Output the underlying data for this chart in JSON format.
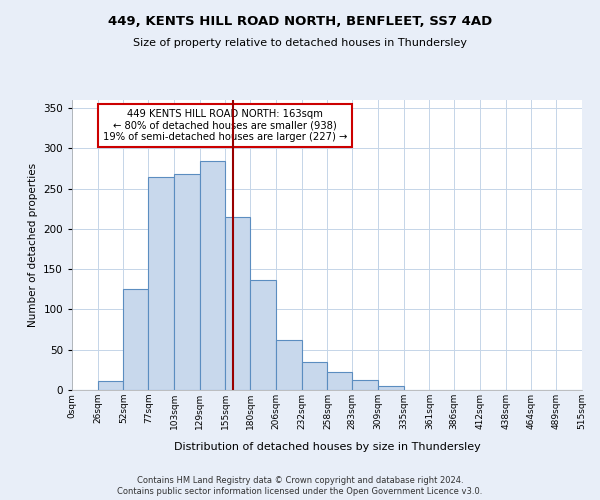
{
  "title": "449, KENTS HILL ROAD NORTH, BENFLEET, SS7 4AD",
  "subtitle": "Size of property relative to detached houses in Thundersley",
  "xlabel": "Distribution of detached houses by size in Thundersley",
  "ylabel": "Number of detached properties",
  "bar_labels": [
    "0sqm",
    "26sqm",
    "52sqm",
    "77sqm",
    "103sqm",
    "129sqm",
    "155sqm",
    "180sqm",
    "206sqm",
    "232sqm",
    "258sqm",
    "283sqm",
    "309sqm",
    "335sqm",
    "361sqm",
    "386sqm",
    "412sqm",
    "438sqm",
    "464sqm",
    "489sqm",
    "515sqm"
  ],
  "bin_edges": [
    0,
    26,
    52,
    77,
    103,
    129,
    155,
    180,
    206,
    232,
    258,
    283,
    309,
    335,
    361,
    386,
    412,
    438,
    464,
    489,
    515
  ],
  "bar_heights": [
    0,
    11,
    126,
    265,
    268,
    284,
    215,
    137,
    62,
    35,
    22,
    13,
    5,
    0,
    0,
    0,
    0,
    0,
    0,
    0
  ],
  "bar_color": "#c8d8ec",
  "bar_edge_color": "#5b8dc0",
  "reference_line_x": 163,
  "reference_line_color": "#990000",
  "ylim": [
    0,
    360
  ],
  "yticks": [
    0,
    50,
    100,
    150,
    200,
    250,
    300,
    350
  ],
  "annotation_text": "449 KENTS HILL ROAD NORTH: 163sqm\n← 80% of detached houses are smaller (938)\n19% of semi-detached houses are larger (227) →",
  "annotation_box_edge_color": "#cc0000",
  "footer_line1": "Contains HM Land Registry data © Crown copyright and database right 2024.",
  "footer_line2": "Contains public sector information licensed under the Open Government Licence v3.0.",
  "bg_color": "#e8eef8",
  "plot_bg_color": "#ffffff",
  "grid_color": "#c5d5e8"
}
